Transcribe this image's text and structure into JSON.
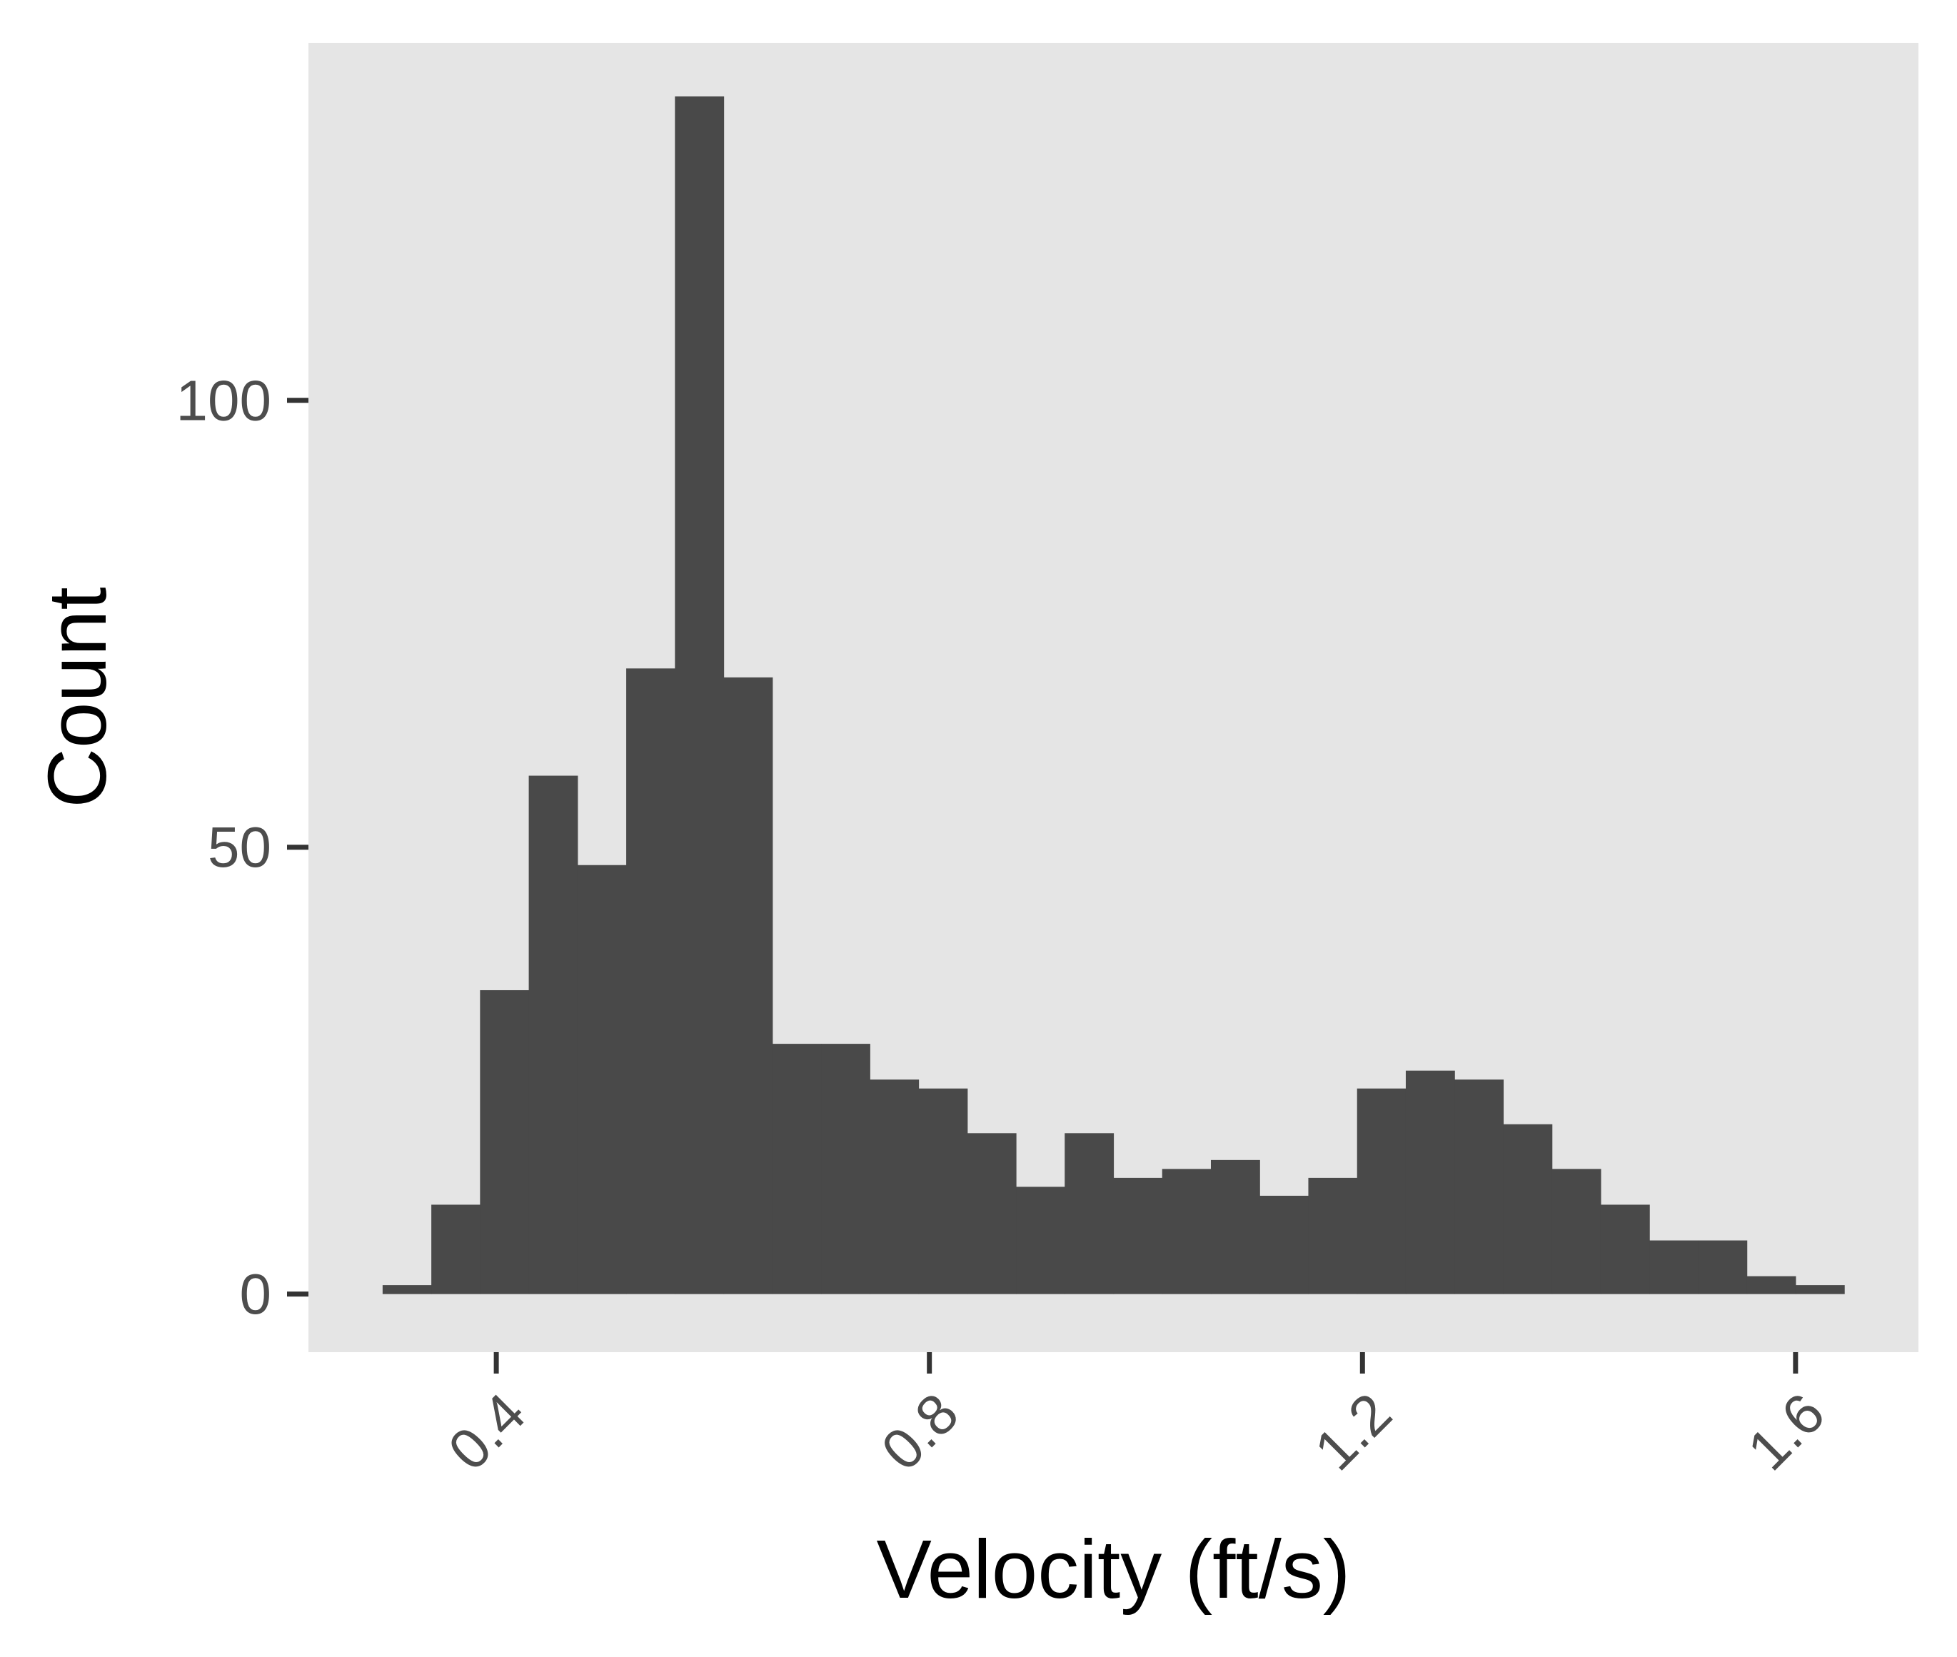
{
  "chart_data": {
    "type": "bar",
    "subtype": "histogram",
    "title": "",
    "xlabel": "Velocity (ft/s)",
    "ylabel": "Count",
    "xlim": [
      0.2265,
      1.7135
    ],
    "ylim": [
      -6.5,
      140
    ],
    "x_ticks": [
      0.4,
      0.8,
      1.2,
      1.6
    ],
    "x_tick_labels": [
      "0.4",
      "0.8",
      "1.2",
      "1.6"
    ],
    "y_ticks": [
      0,
      50,
      100
    ],
    "y_tick_labels": [
      "0",
      "50",
      "100"
    ],
    "bin_width": 0.045,
    "bins": [
      {
        "x0": 0.295,
        "x1": 0.34,
        "count": 1
      },
      {
        "x0": 0.34,
        "x1": 0.385,
        "count": 10
      },
      {
        "x0": 0.385,
        "x1": 0.43,
        "count": 34
      },
      {
        "x0": 0.43,
        "x1": 0.475,
        "count": 58
      },
      {
        "x0": 0.475,
        "x1": 0.52,
        "count": 48
      },
      {
        "x0": 0.52,
        "x1": 0.565,
        "count": 70
      },
      {
        "x0": 0.565,
        "x1": 0.61,
        "count": 134
      },
      {
        "x0": 0.61,
        "x1": 0.655,
        "count": 69
      },
      {
        "x0": 0.655,
        "x1": 0.7,
        "count": 28
      },
      {
        "x0": 0.7,
        "x1": 0.745,
        "count": 28
      },
      {
        "x0": 0.745,
        "x1": 0.79,
        "count": 24
      },
      {
        "x0": 0.79,
        "x1": 0.835,
        "count": 23
      },
      {
        "x0": 0.835,
        "x1": 0.88,
        "count": 18
      },
      {
        "x0": 0.88,
        "x1": 0.925,
        "count": 12
      },
      {
        "x0": 0.925,
        "x1": 0.97,
        "count": 18
      },
      {
        "x0": 0.97,
        "x1": 1.015,
        "count": 13
      },
      {
        "x0": 1.015,
        "x1": 1.06,
        "count": 14
      },
      {
        "x0": 1.06,
        "x1": 1.105,
        "count": 15
      },
      {
        "x0": 1.105,
        "x1": 1.15,
        "count": 11
      },
      {
        "x0": 1.15,
        "x1": 1.195,
        "count": 13
      },
      {
        "x0": 1.195,
        "x1": 1.24,
        "count": 23
      },
      {
        "x0": 1.24,
        "x1": 1.285,
        "count": 25
      },
      {
        "x0": 1.285,
        "x1": 1.33,
        "count": 24
      },
      {
        "x0": 1.33,
        "x1": 1.375,
        "count": 19
      },
      {
        "x0": 1.375,
        "x1": 1.42,
        "count": 14
      },
      {
        "x0": 1.42,
        "x1": 1.465,
        "count": 10
      },
      {
        "x0": 1.465,
        "x1": 1.51,
        "count": 6
      },
      {
        "x0": 1.51,
        "x1": 1.555,
        "count": 6
      },
      {
        "x0": 1.555,
        "x1": 1.6,
        "count": 2
      },
      {
        "x0": 1.6,
        "x1": 1.645,
        "count": 1
      }
    ],
    "grid": false,
    "legend": "none",
    "colors": {
      "panel_background": "#e5e5e5",
      "bar_fill": "#494949",
      "tick_label": "#4d4d4d",
      "tick_mark": "#333333",
      "axis_title": "#000000"
    }
  }
}
